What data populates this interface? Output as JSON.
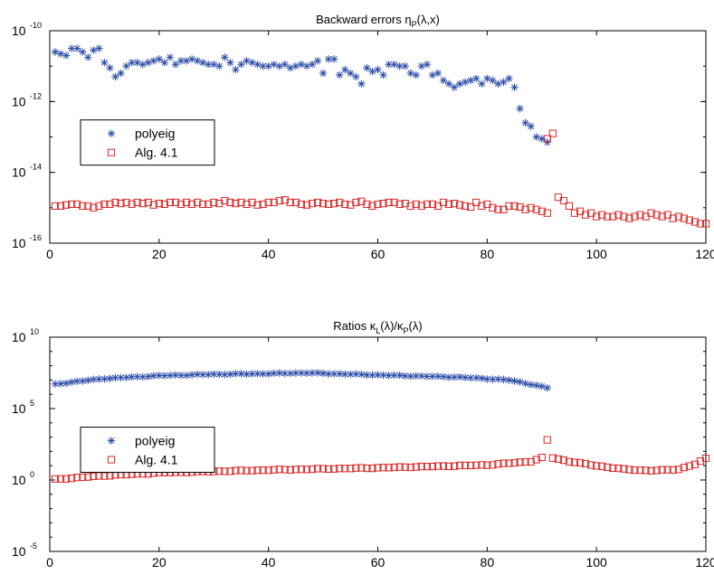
{
  "chart_data": [
    {
      "type": "scatter",
      "title_main": "Backward errors η",
      "title_sub": "P",
      "title_tail": "(λ,x)",
      "x_axis": {
        "min": 0,
        "max": 120,
        "ticks": [
          "0",
          "20",
          "40",
          "60",
          "80",
          "100",
          "120"
        ]
      },
      "y_axis": {
        "scale": "log",
        "min_exp": -16,
        "max_exp": -10,
        "ticks": [
          {
            "exp": -10,
            "label": "-10"
          },
          {
            "exp": -12,
            "label": "-12"
          },
          {
            "exp": -14,
            "label": "-14"
          },
          {
            "exp": -16,
            "label": "-16"
          }
        ]
      },
      "grid": false,
      "legend": {
        "placement": "left-middle"
      },
      "series": [
        {
          "name": "polyeig",
          "marker": "asterisk",
          "color": "#2b4ba6",
          "x": [
            1,
            2,
            3,
            4,
            5,
            6,
            7,
            8,
            9,
            10,
            11,
            12,
            13,
            14,
            15,
            16,
            17,
            18,
            19,
            20,
            21,
            22,
            23,
            24,
            25,
            26,
            27,
            28,
            29,
            30,
            31,
            32,
            33,
            34,
            35,
            36,
            37,
            38,
            39,
            40,
            41,
            42,
            43,
            44,
            45,
            46,
            47,
            48,
            49,
            50,
            51,
            52,
            53,
            54,
            55,
            56,
            57,
            58,
            59,
            60,
            61,
            62,
            63,
            64,
            65,
            66,
            67,
            68,
            69,
            70,
            71,
            72,
            73,
            74,
            75,
            76,
            77,
            78,
            79,
            80,
            81,
            82,
            83,
            84,
            85,
            86,
            87,
            88,
            89,
            90,
            91
          ],
          "log10_y": [
            -10.6,
            -10.65,
            -10.7,
            -10.5,
            -10.5,
            -10.6,
            -10.75,
            -10.55,
            -10.5,
            -10.9,
            -11.05,
            -11.3,
            -11.2,
            -11.0,
            -10.9,
            -10.9,
            -10.95,
            -10.9,
            -10.85,
            -10.8,
            -10.9,
            -10.75,
            -10.95,
            -10.85,
            -10.85,
            -10.8,
            -10.85,
            -10.9,
            -10.95,
            -10.95,
            -11.0,
            -10.75,
            -10.9,
            -11.1,
            -10.95,
            -10.85,
            -10.9,
            -10.95,
            -11.0,
            -11.0,
            -10.95,
            -11.0,
            -10.95,
            -11.05,
            -11.0,
            -10.95,
            -11.0,
            -10.95,
            -10.85,
            -11.2,
            -10.8,
            -10.8,
            -11.25,
            -11.1,
            -11.2,
            -11.3,
            -11.5,
            -11.05,
            -11.15,
            -11.1,
            -11.25,
            -10.95,
            -10.95,
            -11.0,
            -11.0,
            -11.2,
            -11.25,
            -11.0,
            -10.95,
            -11.25,
            -11.2,
            -11.4,
            -11.5,
            -11.6,
            -11.5,
            -11.45,
            -11.4,
            -11.35,
            -11.5,
            -11.35,
            -11.4,
            -11.5,
            -11.45,
            -11.35,
            -11.6,
            -12.2,
            -12.6,
            -12.7,
            -13.0,
            -13.05,
            -13.15
          ]
        },
        {
          "name": "Alg. 4.1",
          "marker": "square",
          "color": "#d62a2a",
          "x": [
            1,
            2,
            3,
            4,
            5,
            6,
            7,
            8,
            9,
            10,
            11,
            12,
            13,
            14,
            15,
            16,
            17,
            18,
            19,
            20,
            21,
            22,
            23,
            24,
            25,
            26,
            27,
            28,
            29,
            30,
            31,
            32,
            33,
            34,
            35,
            36,
            37,
            38,
            39,
            40,
            41,
            42,
            43,
            44,
            45,
            46,
            47,
            48,
            49,
            50,
            51,
            52,
            53,
            54,
            55,
            56,
            57,
            58,
            59,
            60,
            61,
            62,
            63,
            64,
            65,
            66,
            67,
            68,
            69,
            70,
            71,
            72,
            73,
            74,
            75,
            76,
            77,
            78,
            79,
            80,
            81,
            82,
            83,
            84,
            85,
            86,
            87,
            88,
            89,
            90,
            91,
            92,
            93,
            94,
            95,
            96,
            97,
            98,
            99,
            100,
            101,
            102,
            103,
            104,
            105,
            106,
            107,
            108,
            109,
            110,
            111,
            112,
            113,
            114,
            115,
            116,
            117,
            118,
            119,
            120
          ],
          "log10_y": [
            -14.95,
            -14.95,
            -14.92,
            -14.9,
            -14.9,
            -14.95,
            -14.95,
            -15.0,
            -14.95,
            -14.9,
            -14.9,
            -14.85,
            -14.88,
            -14.85,
            -14.9,
            -14.85,
            -14.88,
            -14.85,
            -14.92,
            -14.88,
            -14.9,
            -14.85,
            -14.85,
            -14.9,
            -14.85,
            -14.9,
            -14.85,
            -14.9,
            -14.9,
            -14.85,
            -14.88,
            -14.8,
            -14.85,
            -14.88,
            -14.85,
            -14.9,
            -14.85,
            -14.92,
            -14.9,
            -14.85,
            -14.85,
            -14.8,
            -14.78,
            -14.85,
            -14.85,
            -14.9,
            -14.92,
            -14.88,
            -14.85,
            -14.88,
            -14.9,
            -14.88,
            -14.85,
            -14.9,
            -14.92,
            -14.85,
            -14.82,
            -14.9,
            -14.95,
            -14.9,
            -14.88,
            -14.85,
            -14.85,
            -14.9,
            -14.88,
            -14.95,
            -14.9,
            -14.95,
            -14.9,
            -14.9,
            -14.95,
            -14.85,
            -14.9,
            -14.88,
            -14.92,
            -14.95,
            -14.98,
            -14.85,
            -14.95,
            -14.9,
            -15.0,
            -15.05,
            -15.05,
            -14.95,
            -14.95,
            -14.98,
            -15.05,
            -15.0,
            -15.05,
            -15.1,
            -15.15,
            -12.9,
            -14.7,
            -14.8,
            -14.95,
            -15.15,
            -15.1,
            -15.2,
            -15.15,
            -15.25,
            -15.2,
            -15.25,
            -15.25,
            -15.2,
            -15.25,
            -15.3,
            -15.25,
            -15.2,
            -15.25,
            -15.15,
            -15.2,
            -15.25,
            -15.2,
            -15.3,
            -15.25,
            -15.3,
            -15.35,
            -15.4,
            -15.45,
            -15.45
          ],
          "extra_points": [
            {
              "x": 91,
              "log10_y": -13.05
            }
          ]
        }
      ]
    },
    {
      "type": "scatter",
      "title_main": "Ratios κ",
      "title_sub1": "L",
      "title_mid": "(λ)/κ",
      "title_sub2": "P",
      "title_tail": "(λ)",
      "x_axis": {
        "min": 0,
        "max": 120,
        "ticks": [
          "0",
          "20",
          "40",
          "60",
          "80",
          "100",
          "120"
        ]
      },
      "y_axis": {
        "scale": "log",
        "min_exp": -5,
        "max_exp": 10,
        "ticks": [
          {
            "exp": 10,
            "label": "10"
          },
          {
            "exp": 5,
            "label": "5"
          },
          {
            "exp": 0,
            "label": "0"
          },
          {
            "exp": -5,
            "label": "-5"
          }
        ]
      },
      "grid": false,
      "legend": {
        "placement": "left-middle"
      },
      "series": [
        {
          "name": "polyeig",
          "marker": "asterisk",
          "color": "#2b4ba6",
          "x_range": [
            1,
            91
          ],
          "profile": [
            [
              1,
              6.7
            ],
            [
              5,
              6.9
            ],
            [
              10,
              7.1
            ],
            [
              20,
              7.3
            ],
            [
              30,
              7.4
            ],
            [
              40,
              7.45
            ],
            [
              47,
              7.5
            ],
            [
              60,
              7.35
            ],
            [
              75,
              7.2
            ],
            [
              84,
              7.0
            ],
            [
              88,
              6.7
            ],
            [
              91,
              6.45
            ]
          ]
        },
        {
          "name": "Alg. 4.1",
          "marker": "square",
          "color": "#d62a2a",
          "x_range": [
            1,
            120
          ],
          "profile": [
            [
              1,
              0.05
            ],
            [
              10,
              0.3
            ],
            [
              20,
              0.5
            ],
            [
              40,
              0.7
            ],
            [
              60,
              0.85
            ],
            [
              80,
              1.05
            ],
            [
              88,
              1.3
            ],
            [
              90,
              1.55
            ],
            [
              91,
              2.8
            ],
            [
              92,
              1.55
            ],
            [
              95,
              1.3
            ],
            [
              100,
              1.0
            ],
            [
              105,
              0.75
            ],
            [
              110,
              0.65
            ],
            [
              115,
              0.75
            ],
            [
              118,
              1.1
            ],
            [
              120,
              1.5
            ]
          ]
        }
      ]
    }
  ]
}
